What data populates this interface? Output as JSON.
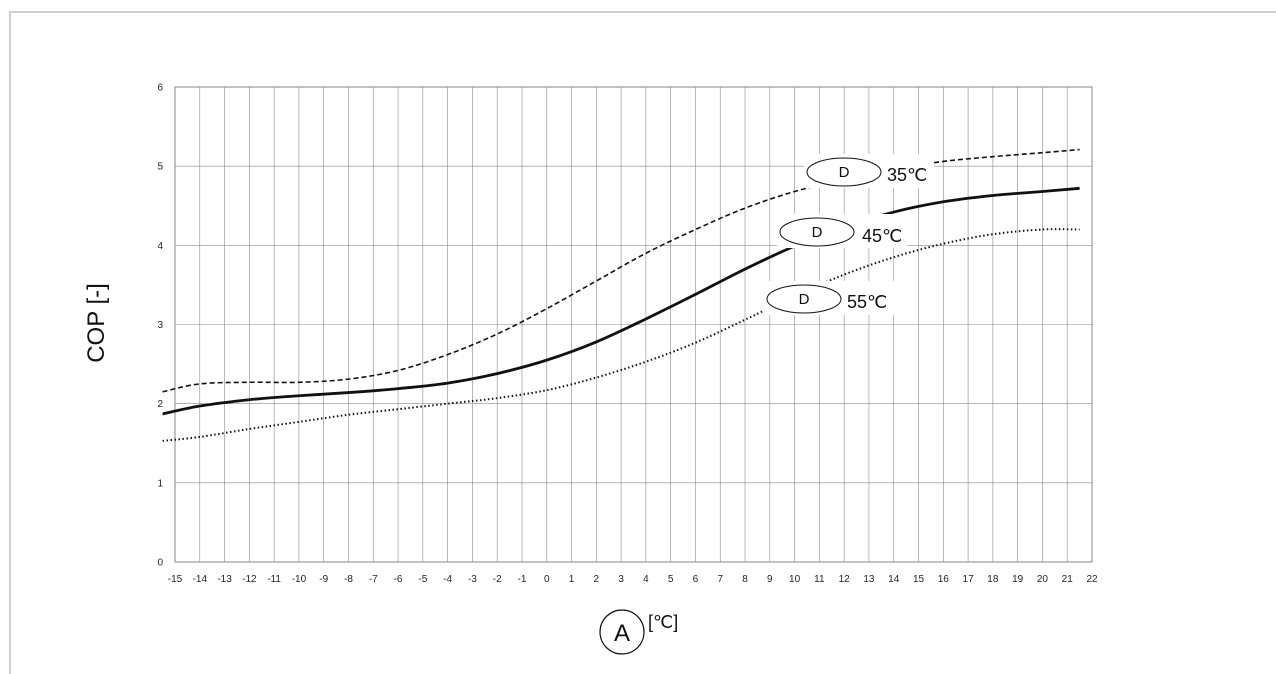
{
  "chart_data": {
    "type": "line",
    "ylabel": "COP [-]",
    "xlabel_marker": "A",
    "xlabel_unit": "[℃]",
    "xlim": [
      -15,
      22
    ],
    "ylim": [
      0,
      6
    ],
    "x_ticks": [
      "-15",
      "-14",
      "-13",
      "-12",
      "-11",
      "-10",
      "-9",
      "-8",
      "-7",
      "-6",
      "-5",
      "-4",
      "-3",
      "-2",
      "-1",
      "0",
      "1",
      "2",
      "3",
      "4",
      "5",
      "6",
      "7",
      "8",
      "9",
      "10",
      "11",
      "12",
      "13",
      "14",
      "15",
      "16",
      "17",
      "18",
      "19",
      "20",
      "21",
      "22"
    ],
    "y_ticks": [
      "0",
      "1",
      "2",
      "3",
      "4",
      "5",
      "6"
    ],
    "grid": true,
    "series": [
      {
        "name": "35℃",
        "marker": "D",
        "style": "dashed",
        "x": [
          -15.5,
          -14,
          -12,
          -10,
          -8,
          -6,
          -4,
          -2,
          0,
          2,
          4,
          6,
          8,
          10,
          12,
          14,
          16,
          18,
          20,
          21.5
        ],
        "y": [
          2.15,
          2.25,
          2.27,
          2.27,
          2.31,
          2.42,
          2.62,
          2.88,
          3.2,
          3.55,
          3.9,
          4.2,
          4.47,
          4.68,
          4.83,
          4.96,
          5.06,
          5.12,
          5.17,
          5.21
        ]
      },
      {
        "name": "45℃",
        "marker": "D",
        "style": "solid",
        "x": [
          -15.5,
          -14,
          -12,
          -10,
          -8,
          -6,
          -4,
          -2,
          0,
          2,
          4,
          6,
          8,
          10,
          12,
          14,
          16,
          18,
          20,
          21.5
        ],
        "y": [
          1.87,
          1.97,
          2.05,
          2.1,
          2.14,
          2.19,
          2.26,
          2.38,
          2.55,
          2.78,
          3.07,
          3.38,
          3.7,
          3.99,
          4.23,
          4.42,
          4.55,
          4.63,
          4.68,
          4.72
        ]
      },
      {
        "name": "55℃",
        "marker": "D",
        "style": "dotted",
        "x": [
          -15.5,
          -14,
          -12,
          -10,
          -8,
          -6,
          -4,
          -2,
          0,
          2,
          4,
          6,
          8,
          10,
          12,
          14,
          16,
          18,
          20,
          21.5
        ],
        "y": [
          1.53,
          1.58,
          1.68,
          1.77,
          1.86,
          1.93,
          2.0,
          2.07,
          2.17,
          2.33,
          2.53,
          2.77,
          3.06,
          3.36,
          3.63,
          3.85,
          4.02,
          4.14,
          4.2,
          4.2
        ]
      }
    ]
  }
}
